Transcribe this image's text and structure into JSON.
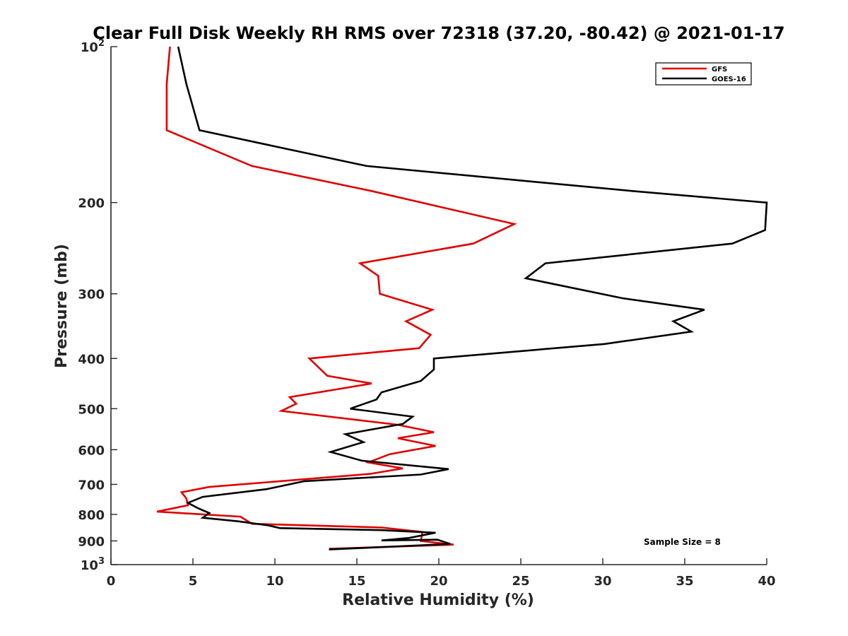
{
  "chart_data": {
    "type": "line",
    "title": "Clear Full Disk Weekly RH RMS over 72318 (37.20, -80.42) @ 2021-01-17",
    "xlabel": "Relative Humidity (%)",
    "ylabel": "Pressure (mb)",
    "xlim": [
      0,
      40
    ],
    "ylim": [
      100,
      1000
    ],
    "y_scale": "log",
    "y_reversed": true,
    "grid": false,
    "legend_position": "top-right",
    "x_ticks": [
      0,
      5,
      10,
      15,
      20,
      25,
      30,
      35,
      40
    ],
    "y_ticks": [
      {
        "value": 100,
        "base": "10",
        "exp": "2"
      },
      {
        "value": 200,
        "label": "200"
      },
      {
        "value": 300,
        "label": "300"
      },
      {
        "value": 400,
        "label": "400"
      },
      {
        "value": 500,
        "label": "500"
      },
      {
        "value": 600,
        "label": "600"
      },
      {
        "value": 700,
        "label": "700"
      },
      {
        "value": 800,
        "label": "800"
      },
      {
        "value": 900,
        "label": "900"
      },
      {
        "value": 1000,
        "base": "10",
        "exp": "3"
      }
    ],
    "annotation": "Sample Size = 8",
    "series": [
      {
        "name": "GFS",
        "color": "#e00000",
        "points": [
          [
            3.6,
            100
          ],
          [
            3.4,
            118
          ],
          [
            3.4,
            145
          ],
          [
            8.6,
            170
          ],
          [
            15.9,
            190
          ],
          [
            24.6,
            220
          ],
          [
            22.1,
            240
          ],
          [
            15.2,
            262
          ],
          [
            16.3,
            277
          ],
          [
            16.4,
            300
          ],
          [
            19.6,
            322
          ],
          [
            18.0,
            339
          ],
          [
            19.5,
            360
          ],
          [
            18.8,
            382
          ],
          [
            12.1,
            400
          ],
          [
            13.2,
            432
          ],
          [
            15.9,
            447
          ],
          [
            10.9,
            475
          ],
          [
            11.3,
            489
          ],
          [
            10.4,
            505
          ],
          [
            17.5,
            537
          ],
          [
            19.7,
            555
          ],
          [
            17.5,
            570
          ],
          [
            19.8,
            590
          ],
          [
            17.0,
            612
          ],
          [
            15.7,
            635
          ],
          [
            17.8,
            652
          ],
          [
            15.8,
            668
          ],
          [
            6.0,
            708
          ],
          [
            4.3,
            725
          ],
          [
            4.6,
            745
          ],
          [
            4.7,
            768
          ],
          [
            2.8,
            790
          ],
          [
            7.9,
            808
          ],
          [
            8.6,
            834
          ],
          [
            16.5,
            848
          ],
          [
            19.0,
            865
          ],
          [
            18.9,
            900
          ],
          [
            20.9,
            915
          ],
          [
            13.3,
            932
          ]
        ]
      },
      {
        "name": "GOES-16",
        "color": "#000000",
        "points": [
          [
            4.1,
            100
          ],
          [
            4.6,
            118
          ],
          [
            5.4,
            145
          ],
          [
            15.6,
            170
          ],
          [
            31.8,
            190
          ],
          [
            40.0,
            200
          ],
          [
            39.9,
            226
          ],
          [
            37.9,
            240
          ],
          [
            26.5,
            262
          ],
          [
            25.3,
            280
          ],
          [
            31.2,
            306
          ],
          [
            36.2,
            322
          ],
          [
            34.3,
            339
          ],
          [
            35.4,
            355
          ],
          [
            30.1,
            375
          ],
          [
            19.7,
            400
          ],
          [
            19.7,
            420
          ],
          [
            18.9,
            442
          ],
          [
            16.5,
            465
          ],
          [
            16.2,
            480
          ],
          [
            14.6,
            500
          ],
          [
            18.4,
            518
          ],
          [
            17.8,
            535
          ],
          [
            14.3,
            560
          ],
          [
            15.4,
            580
          ],
          [
            13.4,
            606
          ],
          [
            15.3,
            630
          ],
          [
            20.6,
            654
          ],
          [
            18.9,
            670
          ],
          [
            11.8,
            690
          ],
          [
            9.5,
            715
          ],
          [
            5.6,
            740
          ],
          [
            4.7,
            760
          ],
          [
            5.3,
            778
          ],
          [
            6.0,
            795
          ],
          [
            5.6,
            812
          ],
          [
            7.8,
            825
          ],
          [
            9.6,
            840
          ],
          [
            10.3,
            850
          ],
          [
            16.5,
            858
          ],
          [
            19.8,
            868
          ],
          [
            18.2,
            888
          ],
          [
            16.5,
            898
          ],
          [
            19.9,
            895
          ],
          [
            20.7,
            912
          ],
          [
            13.3,
            935
          ]
        ]
      }
    ]
  }
}
